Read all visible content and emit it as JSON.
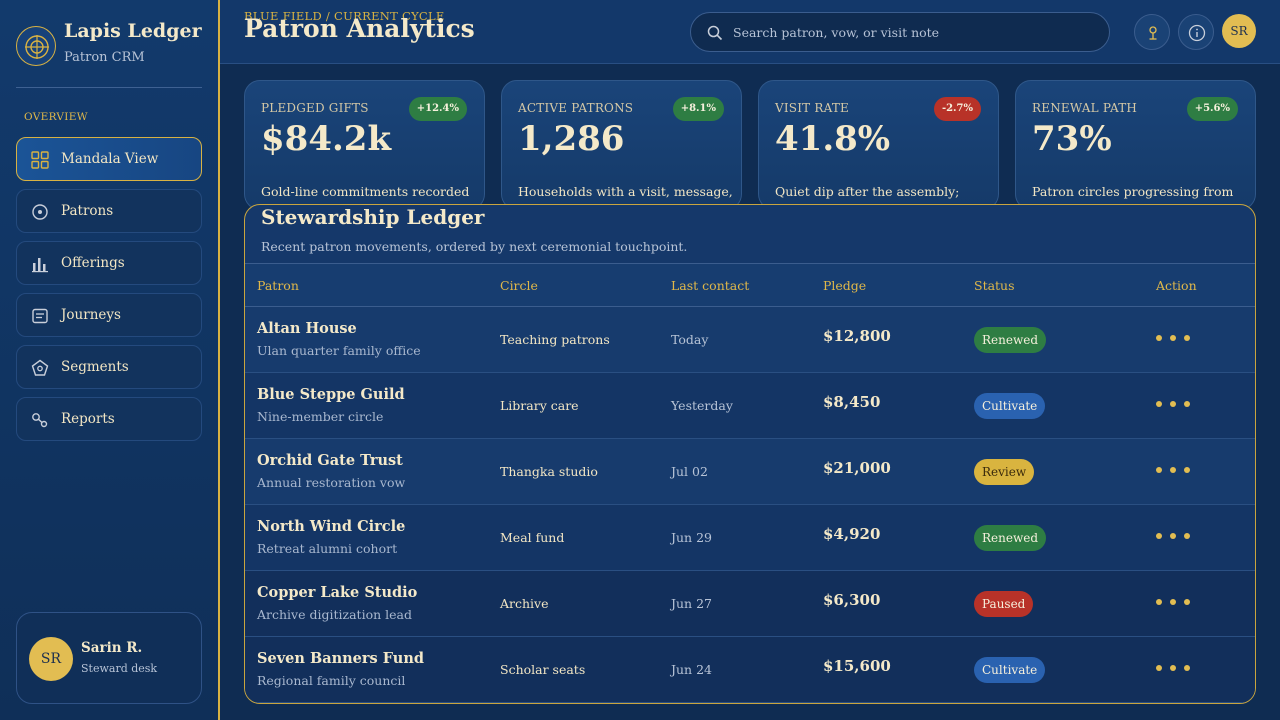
{
  "brand": {
    "title": "Lapis Ledger",
    "subtitle": "Patron CRM"
  },
  "sidebar": {
    "section": "OVERVIEW",
    "items": [
      {
        "label": "Mandala View",
        "icon": "grid-icon",
        "active": true
      },
      {
        "label": "Patrons",
        "icon": "target-icon"
      },
      {
        "label": "Offerings",
        "icon": "bar-chart-icon"
      },
      {
        "label": "Journeys",
        "icon": "document-icon"
      },
      {
        "label": "Segments",
        "icon": "pentagon-icon"
      },
      {
        "label": "Reports",
        "icon": "link-nodes-icon"
      }
    ]
  },
  "user": {
    "initials": "SR",
    "name": "Sarin R.",
    "role": "Steward desk"
  },
  "header": {
    "eyebrow": "BLUE FIELD / CURRENT CYCLE",
    "title": "Patron Analytics",
    "search_placeholder": "Search patron, vow, or visit note",
    "avatar_initials": "SR"
  },
  "cards": [
    {
      "label": "PLEDGED GIFTS",
      "badge": "+12.4%",
      "badge_color": "#2e7d43",
      "value": "$84.2k",
      "desc": "Gold-line commitments recorded for"
    },
    {
      "label": "ACTIVE PATRONS",
      "badge": "+8.1%",
      "badge_color": "#2e7d43",
      "value": "1,286",
      "desc": "Households with a visit, message, or"
    },
    {
      "label": "VISIT RATE",
      "badge": "-2.7%",
      "badge_color": "#b83228",
      "value": "41.8%",
      "desc": "Quiet dip after the assembly; follow-"
    },
    {
      "label": "RENEWAL PATH",
      "badge": "+5.6%",
      "badge_color": "#2e7d43",
      "value": "73%",
      "desc": "Patron circles progressing from first"
    }
  ],
  "ledger": {
    "title": "Stewardship Ledger",
    "subtitle": "Recent patron movements, ordered by next ceremonial touchpoint.",
    "columns": [
      "Patron",
      "Circle",
      "Last contact",
      "Pledge",
      "Status",
      "Action"
    ],
    "rows": [
      {
        "name": "Altan House",
        "note": "Ulan quarter family office",
        "circle": "Teaching patrons",
        "contact": "Today",
        "pledge": "$12,800",
        "status": "Renewed",
        "status_kind": "renewed"
      },
      {
        "name": "Blue Steppe Guild",
        "note": "Nine-member circle",
        "circle": "Library care",
        "contact": "Yesterday",
        "pledge": "$8,450",
        "status": "Cultivate",
        "status_kind": "cultivate"
      },
      {
        "name": "Orchid Gate Trust",
        "note": "Annual restoration vow",
        "circle": "Thangka studio",
        "contact": "Jul 02",
        "pledge": "$21,000",
        "status": "Review",
        "status_kind": "review"
      },
      {
        "name": "North Wind Circle",
        "note": "Retreat alumni cohort",
        "circle": "Meal fund",
        "contact": "Jun 29",
        "pledge": "$4,920",
        "status": "Renewed",
        "status_kind": "renewed"
      },
      {
        "name": "Copper Lake Studio",
        "note": "Archive digitization lead",
        "circle": "Archive",
        "contact": "Jun 27",
        "pledge": "$6,300",
        "status": "Paused",
        "status_kind": "paused"
      },
      {
        "name": "Seven Banners Fund",
        "note": "Regional family council",
        "circle": "Scholar seats",
        "contact": "Jun 24",
        "pledge": "$15,600",
        "status": "Cultivate",
        "status_kind": "cultivate"
      }
    ]
  }
}
